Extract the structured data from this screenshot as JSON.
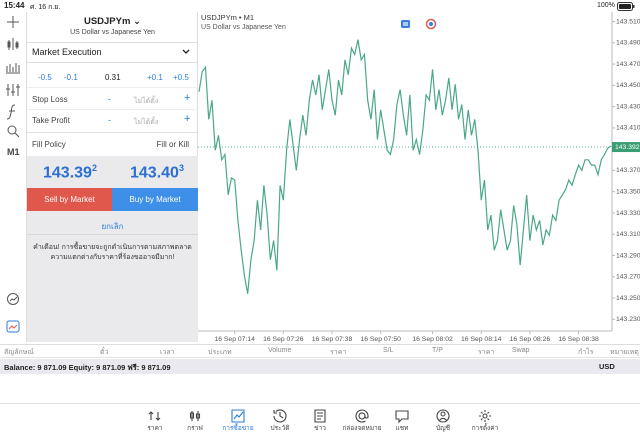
{
  "status_bar": {
    "time": "15:44",
    "date": "ศ. 16 ก.ย.",
    "battery": "100%"
  },
  "toolbar": {
    "timeframe": "M1"
  },
  "order_panel": {
    "symbol": "USDJPYm",
    "description": "US Dollar vs Japanese Yen",
    "order_type": "Market Execution",
    "volume_steps": [
      "-0.5",
      "-0.1",
      "+0.1",
      "+0.5"
    ],
    "volume": "0.31",
    "stop_loss": {
      "label": "Stop Loss",
      "minus": "-",
      "value": "ไม่ได้ตั้ง",
      "plus": "+"
    },
    "take_profit": {
      "label": "Take Profit",
      "minus": "-",
      "value": "ไม่ได้ตั้ง",
      "plus": "+"
    },
    "fill_policy": {
      "label": "Fill Policy",
      "value": "Fill or Kill"
    },
    "sell_price": {
      "main": "143.39",
      "small": "2"
    },
    "buy_price": {
      "main": "143.40",
      "small": "3"
    },
    "sell_button": "Sell by Market",
    "buy_button": "Buy by Market",
    "cancel": "ยกเลิก",
    "warning": [
      "คำเตือน! การซื้อขายจะถูกดำเนินการตามสภาพตลาด",
      "ความแตกต่างกับราคาที่ร้องขออาจมีมาก!"
    ]
  },
  "chart_data": {
    "type": "line",
    "title": "USDJPYm • M1",
    "subtitle": "US Dollar vs Japanese Yen",
    "color": "#4aa886",
    "categories": [
      null,
      null,
      null,
      null,
      null,
      null,
      null,
      null,
      null,
      null,
      null,
      "16 Sep 07:14",
      null,
      null,
      null,
      null,
      null,
      null,
      null,
      null,
      null,
      null,
      null,
      null,
      null,
      null,
      "16 Sep 07:26",
      null,
      null,
      null,
      null,
      null,
      null,
      null,
      null,
      null,
      null,
      null,
      null,
      null,
      null,
      "16 Sep 07:38",
      null,
      null,
      null,
      null,
      null,
      null,
      null,
      null,
      null,
      null,
      null,
      null,
      null,
      null,
      "16 Sep 07:50",
      null,
      null,
      null,
      null,
      null,
      null,
      null,
      null,
      null,
      null,
      null,
      null,
      null,
      null,
      null,
      "16 Sep 08:02",
      null,
      null,
      null,
      null,
      null,
      null,
      null,
      null,
      null,
      null,
      null,
      null,
      null,
      null,
      "16 Sep 08:14",
      null,
      null,
      null,
      null,
      null,
      null,
      null,
      null,
      null,
      null,
      null,
      null,
      null,
      null,
      "16 Sep 08:26",
      null,
      null,
      null,
      null,
      null,
      null,
      null,
      null,
      null,
      null,
      null,
      null,
      null,
      null,
      "16 Sep 08:38",
      null,
      null,
      null,
      null,
      null,
      null,
      null,
      null,
      null,
      null
    ],
    "values": [
      143.444,
      143.463,
      143.467,
      143.418,
      143.436,
      143.389,
      143.403,
      143.38,
      143.385,
      143.347,
      143.363,
      143.361,
      143.323,
      143.295,
      143.271,
      143.254,
      143.286,
      143.304,
      143.342,
      143.314,
      143.356,
      143.328,
      143.286,
      143.304,
      143.276,
      143.356,
      143.342,
      143.389,
      143.418,
      143.394,
      143.37,
      143.399,
      143.422,
      143.403,
      143.436,
      143.455,
      143.441,
      143.46,
      143.427,
      143.446,
      143.465,
      143.436,
      143.422,
      143.455,
      143.441,
      143.474,
      143.46,
      143.485,
      143.479,
      143.493,
      143.474,
      143.479,
      143.436,
      143.418,
      143.446,
      143.399,
      143.427,
      143.408,
      143.389,
      143.385,
      143.399,
      143.432,
      143.446,
      143.422,
      143.403,
      143.441,
      143.389,
      143.399,
      143.385,
      143.408,
      143.441,
      143.436,
      143.465,
      143.427,
      143.446,
      143.422,
      143.436,
      143.457,
      143.427,
      143.451,
      143.418,
      143.432,
      143.399,
      143.427,
      143.403,
      143.418,
      143.389,
      143.342,
      143.361,
      143.314,
      143.328,
      143.295,
      143.304,
      143.333,
      143.314,
      143.295,
      143.304,
      143.337,
      143.319,
      143.281,
      143.314,
      143.347,
      143.304,
      143.328,
      143.314,
      143.323,
      143.3,
      143.314,
      143.309,
      143.328,
      143.323,
      143.342,
      143.347,
      143.352,
      143.361,
      143.356,
      143.366,
      143.375,
      143.37,
      143.38,
      143.38,
      143.375,
      143.375,
      143.366,
      143.38,
      143.385,
      143.391,
      143.393
    ],
    "ylim": [
      143.219,
      143.519
    ],
    "yticks": [
      {
        "value": 143.51,
        "label": "143.510"
      },
      {
        "value": 143.49,
        "label": "143.490"
      },
      {
        "value": 143.47,
        "label": "143.470"
      },
      {
        "value": 143.45,
        "label": "143.450"
      },
      {
        "value": 143.43,
        "label": "143.430"
      },
      {
        "value": 143.41,
        "label": "143.410"
      },
      {
        "value": 143.39,
        "label": "143.390"
      },
      {
        "value": 143.37,
        "label": "143.370"
      },
      {
        "value": 143.35,
        "label": "143.350"
      },
      {
        "value": 143.33,
        "label": "143.330"
      },
      {
        "value": 143.31,
        "label": "143.310"
      },
      {
        "value": 143.29,
        "label": "143.290"
      },
      {
        "value": 143.27,
        "label": "143.270"
      },
      {
        "value": 143.25,
        "label": "143.250"
      },
      {
        "value": 143.23,
        "label": "143.230"
      }
    ],
    "current_price": 143.392,
    "current_price_color": "#3a9e72",
    "grid": false
  },
  "positions_table": {
    "columns": [
      "สัญลักษณ์",
      "ตั๋ว",
      "เวลา",
      "ประเภท",
      "Volume",
      "ราคา",
      "S/L",
      "T/P",
      "ราคา",
      "Swap",
      "กำไร",
      "หมายเหตุ"
    ],
    "balance": "Balance: 9 871.09 Equity: 9 871.09 ฟรี: 9 871.09",
    "currency": "USD"
  },
  "tab_bar": {
    "tabs": [
      "ราคา",
      "กราฟ",
      "การซื้อขาย",
      "ประวัติ",
      "ข่าว",
      "กล่องจดหมาย",
      "แชท",
      "บัญชี",
      "การตั้งค่า"
    ],
    "active": 2
  }
}
